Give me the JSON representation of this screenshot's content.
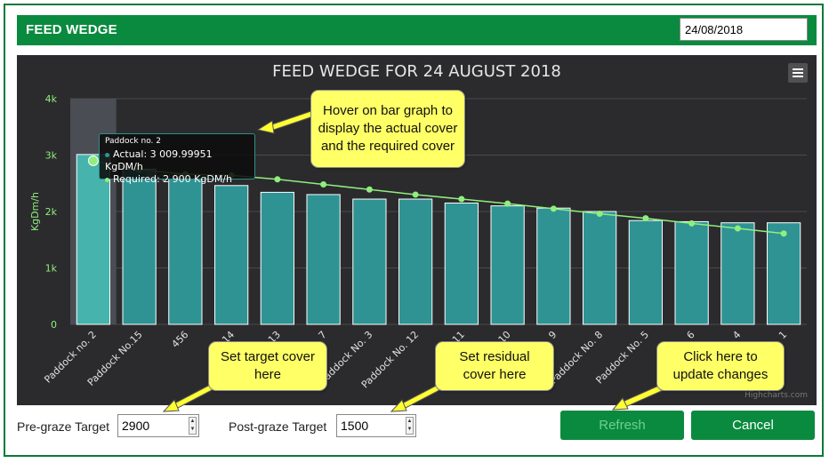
{
  "header": {
    "title": "FEED WEDGE",
    "date_value": "24/08/2018"
  },
  "chart_title": "FEED WEDGE FOR 24 AUGUST 2018",
  "credits": "Highcharts.com",
  "chart_data": {
    "type": "bar",
    "title": "FEED WEDGE FOR 24 AUGUST 2018",
    "ylabel": "KgDm/h",
    "ylim": [
      0,
      4000
    ],
    "yticks": [
      "0",
      "1k",
      "2k",
      "3k",
      "4k"
    ],
    "categories": [
      "Paddock no. 2",
      "Paddock No.15",
      "456",
      "14",
      "13",
      "7",
      "Paddock No. 3",
      "Paddock No. 12",
      "11",
      "10",
      "9",
      "Paddock No. 8",
      "Paddock No. 5",
      "6",
      "4",
      "1"
    ],
    "series": [
      {
        "name": "Actual",
        "values": [
          3010,
          2750,
          2580,
          2460,
          2340,
          2300,
          2220,
          2220,
          2150,
          2100,
          2060,
          2000,
          1840,
          1820,
          1800,
          1800
        ]
      },
      {
        "name": "Required",
        "values": [
          2900,
          2740,
          2660,
          2640,
          2570,
          2480,
          2390,
          2300,
          2220,
          2140,
          2050,
          1960,
          1880,
          1790,
          1700,
          1610
        ]
      }
    ],
    "legend_partial": "Required",
    "grid": true,
    "colors": {
      "bar": "#2f9394",
      "bar_highlight": "#46b3ad",
      "line": "#90ee7e",
      "background": "#2b2b2d"
    }
  },
  "tooltip": {
    "title": "Paddock no. 2",
    "actual": "Actual: 3 009.99951 KgDM/h",
    "required": "Required: 2 900 KgDM/h"
  },
  "callouts": {
    "hover": "Hover on bar graph to display the actual cover and the required cover",
    "target": "Set target cover here",
    "residual": "Set residual cover here",
    "refresh": "Click here to update changes"
  },
  "controls": {
    "pre_graze_label": "Pre-graze Target",
    "pre_graze_value": "2900",
    "post_graze_label": "Post-graze Target",
    "post_graze_value": "1500",
    "refresh_label": "Refresh",
    "cancel_label": "Cancel"
  },
  "icons": {
    "menu": "hamburger-menu-icon",
    "spinner_up": "up-arrow-icon",
    "spinner_down": "down-arrow-icon"
  }
}
